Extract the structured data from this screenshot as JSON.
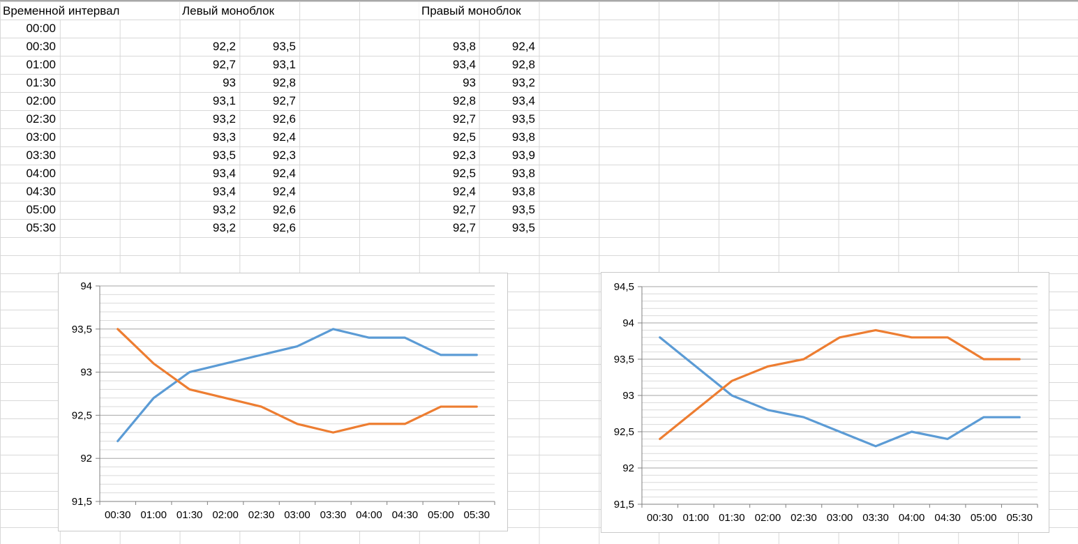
{
  "table": {
    "headers": {
      "time": "Временной интервал",
      "left": "Левый моноблок",
      "right": "Правый моноблок"
    },
    "rows": [
      {
        "time": "00:00",
        "l1": "",
        "l2": "",
        "r1": "",
        "r2": ""
      },
      {
        "time": "00:30",
        "l1": "92,2",
        "l2": "93,5",
        "r1": "93,8",
        "r2": "92,4"
      },
      {
        "time": "01:00",
        "l1": "92,7",
        "l2": "93,1",
        "r1": "93,4",
        "r2": "92,8"
      },
      {
        "time": "01:30",
        "l1": "93",
        "l2": "92,8",
        "r1": "93",
        "r2": "93,2"
      },
      {
        "time": "02:00",
        "l1": "93,1",
        "l2": "92,7",
        "r1": "92,8",
        "r2": "93,4"
      },
      {
        "time": "02:30",
        "l1": "93,2",
        "l2": "92,6",
        "r1": "92,7",
        "r2": "93,5"
      },
      {
        "time": "03:00",
        "l1": "93,3",
        "l2": "92,4",
        "r1": "92,5",
        "r2": "93,8"
      },
      {
        "time": "03:30",
        "l1": "93,5",
        "l2": "92,3",
        "r1": "92,3",
        "r2": "93,9"
      },
      {
        "time": "04:00",
        "l1": "93,4",
        "l2": "92,4",
        "r1": "92,5",
        "r2": "93,8"
      },
      {
        "time": "04:30",
        "l1": "93,4",
        "l2": "92,4",
        "r1": "92,4",
        "r2": "93,8"
      },
      {
        "time": "05:00",
        "l1": "93,2",
        "l2": "92,6",
        "r1": "92,7",
        "r2": "93,5"
      },
      {
        "time": "05:30",
        "l1": "93,2",
        "l2": "92,6",
        "r1": "92,7",
        "r2": "93,5"
      }
    ]
  },
  "chart_data": [
    {
      "type": "line",
      "name": "left-monoblock-chart",
      "categories": [
        "00:30",
        "01:00",
        "01:30",
        "02:00",
        "02:30",
        "03:00",
        "03:30",
        "04:00",
        "04:30",
        "05:00",
        "05:30"
      ],
      "series": [
        {
          "name": "series-1",
          "color": "#5B9BD5",
          "values": [
            92.2,
            92.7,
            93,
            93.1,
            93.2,
            93.3,
            93.5,
            93.4,
            93.4,
            93.2,
            93.2
          ]
        },
        {
          "name": "series-2",
          "color": "#ED7D31",
          "values": [
            93.5,
            93.1,
            92.8,
            92.7,
            92.6,
            92.4,
            92.3,
            92.4,
            92.4,
            92.6,
            92.6
          ]
        }
      ],
      "ylim": [
        91.5,
        94
      ],
      "ytick_step": 0.5,
      "minor_step": 0.1,
      "ytick_labels": [
        "94",
        "93,5",
        "93",
        "92,5",
        "92",
        "91,5"
      ],
      "grid": "major+minor",
      "legend": "none"
    },
    {
      "type": "line",
      "name": "right-monoblock-chart",
      "categories": [
        "00:30",
        "01:00",
        "01:30",
        "02:00",
        "02:30",
        "03:00",
        "03:30",
        "04:00",
        "04:30",
        "05:00",
        "05:30"
      ],
      "series": [
        {
          "name": "series-1",
          "color": "#5B9BD5",
          "values": [
            93.8,
            93.4,
            93,
            92.8,
            92.7,
            92.5,
            92.3,
            92.5,
            92.4,
            92.7,
            92.7
          ]
        },
        {
          "name": "series-2",
          "color": "#ED7D31",
          "values": [
            92.4,
            92.8,
            93.2,
            93.4,
            93.5,
            93.8,
            93.9,
            93.8,
            93.8,
            93.5,
            93.5
          ]
        }
      ],
      "ylim": [
        91.5,
        94.5
      ],
      "ytick_step": 0.5,
      "minor_step": 0.1,
      "ytick_labels": [
        "94,5",
        "94",
        "93,5",
        "93",
        "92,5",
        "92",
        "91,5"
      ],
      "grid": "major+minor",
      "legend": "none"
    }
  ],
  "colors": {
    "series_blue": "#5B9BD5",
    "series_orange": "#ED7D31",
    "sheet_gridline": "#D8D8D8",
    "chart_minor_grid": "#D9D9D9",
    "chart_major_grid": "#A6A6A6",
    "chart_axis": "#7F7F7F",
    "chart_border": "#C9C9C9",
    "text": "#000000"
  }
}
